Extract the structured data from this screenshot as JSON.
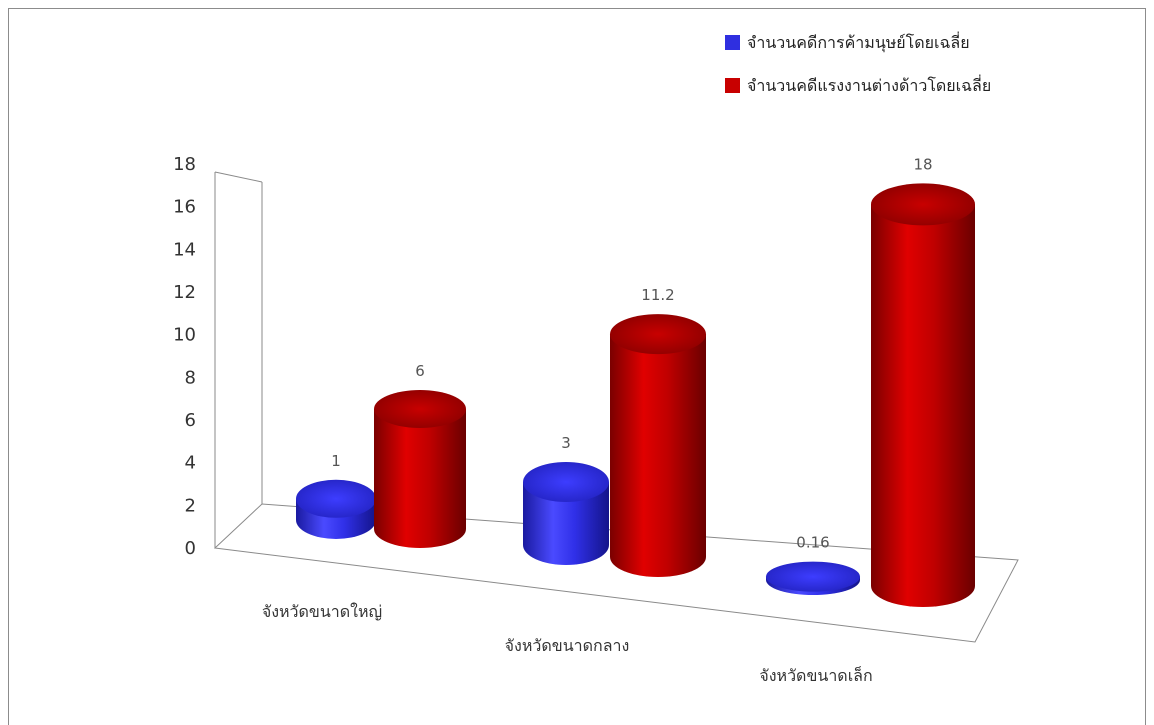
{
  "chart_data": {
    "type": "bar",
    "style": "3d-cylinder",
    "categories": [
      "จังหวัดขนาดใหญ่",
      "จังหวัดขนาดกลาง",
      "จังหวัดขนาดเล็ก"
    ],
    "series": [
      {
        "name": "จำนวนคดีการค้ามนุษย์โดยเฉลี่ย",
        "values": [
          1,
          3,
          0.16
        ],
        "color": "#2f2fe0"
      },
      {
        "name": "จำนวนคดีแรงงานต่างด้าวโดยเฉลี่ย",
        "values": [
          6,
          11.2,
          18
        ],
        "color": "#c80000"
      }
    ],
    "data_labels": [
      [
        "1",
        "3",
        "0.16"
      ],
      [
        "6",
        "11.2",
        "18"
      ]
    ],
    "ylim": [
      0,
      18
    ],
    "yticks": [
      "0",
      "2",
      "4",
      "6",
      "8",
      "10",
      "12",
      "14",
      "16",
      "18"
    ],
    "legend_position": "top-right",
    "grid": false,
    "title": "",
    "xlabel": "",
    "ylabel": ""
  }
}
